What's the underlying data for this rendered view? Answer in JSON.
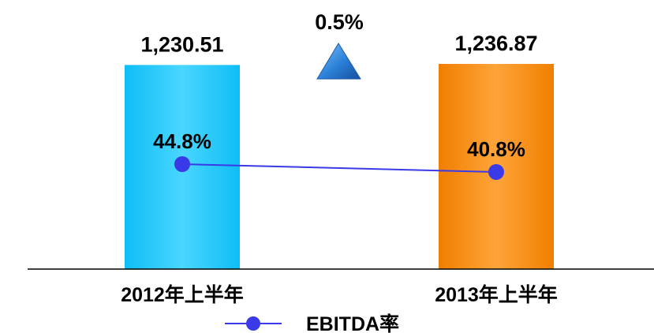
{
  "chart_data": {
    "type": "bar",
    "categories": [
      "2012年上半年",
      "2013年上半年"
    ],
    "series": [
      {
        "values": [
          1230.51,
          1236.87
        ],
        "value_labels": [
          "1,230.51",
          "1,236.87"
        ],
        "colors": [
          "#29c8ff",
          "#ff8c00"
        ]
      },
      {
        "name": "EBITDA率",
        "type": "line",
        "values": [
          44.8,
          40.8
        ],
        "value_labels": [
          "44.8%",
          "40.8%"
        ],
        "color": "#3a3ae8"
      }
    ],
    "annotations": [
      {
        "text": "0.5%",
        "icon": "up-triangle-icon",
        "color": "#2d7fd3"
      }
    ],
    "legend": {
      "position": "bottom",
      "entries": [
        "EBITDA率"
      ]
    },
    "grid": false
  }
}
